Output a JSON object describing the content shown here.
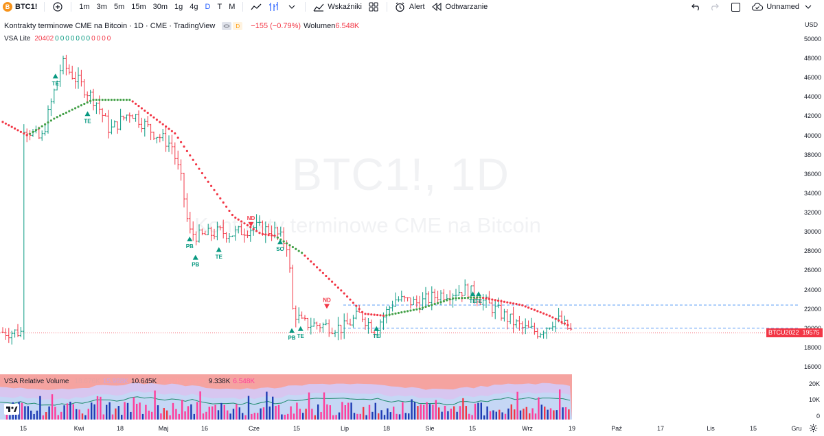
{
  "toolbar": {
    "symbol": "BTC1!",
    "symbol_logo": "B",
    "timeframes": [
      "1m",
      "3m",
      "5m",
      "15m",
      "30m",
      "1g",
      "4g",
      "D",
      "T",
      "M"
    ],
    "active_timeframe": "D",
    "indicators_label": "Wskaźniki",
    "alert_label": "Alert",
    "replay_label": "Odtwarzanie",
    "layout_label": "Unnamed"
  },
  "legend": {
    "title": "Kontrakty terminowe CME na Bitcoin · 1D · CME · TradingView",
    "badge_d": "D",
    "change": "−155 (−0.79%)",
    "volume_label": "Wolumen",
    "volume_value": "6.548K"
  },
  "vsa_legend": {
    "name": "VSA Lite",
    "values": [
      "20402",
      "0",
      "0",
      "0",
      "0",
      "0",
      "0",
      "0",
      "0",
      "0",
      "0",
      "0"
    ]
  },
  "watermark": {
    "line1": "BTC1!, 1D",
    "line2": "Kontrakty terminowe CME na Bitcoin"
  },
  "price_axis": {
    "currency": "USD",
    "labels": [
      "50000",
      "48000",
      "46000",
      "44000",
      "42000",
      "40000",
      "38000",
      "36000",
      "34000",
      "32000",
      "30000",
      "28000",
      "26000",
      "24000",
      "22000",
      "20000",
      "18000",
      "16000"
    ],
    "last_price": "19575",
    "contract_tag": "BTCU2022"
  },
  "volume_pane": {
    "name": "VSA Relative Volume",
    "values": [
      "18.676K",
      "15.968K",
      "10.645K",
      "7.937K",
      "2.615K",
      "9.338K",
      "6.548K"
    ],
    "value_colors": [
      "#e8a3a3",
      "#c7a6e6",
      "#131722",
      "#ff9f9f",
      "#ff9f9f",
      "#131722",
      "#ff3d9a"
    ],
    "axis_labels": [
      "20K",
      "10K",
      "0"
    ]
  },
  "time_axis": {
    "labels": [
      "15",
      "Kwi",
      "18",
      "Maj",
      "16",
      "Cze",
      "15",
      "Lip",
      "18",
      "Sie",
      "15",
      "Wrz",
      "19",
      "Paź",
      "17",
      "Lis",
      "15",
      "Gru"
    ]
  },
  "chart_data": {
    "type": "candlestick",
    "title": "",
    "ylim": [
      16000,
      50000
    ],
    "signals": [
      {
        "label": "TE",
        "dir": "up",
        "date": "2022-03-26",
        "price": 46200
      },
      {
        "label": "TE",
        "dir": "up",
        "date": "2022-04-06",
        "price": 42300
      },
      {
        "label": "PB",
        "dir": "up",
        "date": "2022-05-11",
        "price": 29300
      },
      {
        "label": "PB",
        "dir": "up",
        "date": "2022-05-13",
        "price": 27400
      },
      {
        "label": "TE",
        "dir": "up",
        "date": "2022-05-21",
        "price": 28200
      },
      {
        "label": "ND",
        "dir": "down",
        "date": "2022-06-01",
        "price": 30800
      },
      {
        "label": "SO",
        "dir": "up",
        "date": "2022-06-11",
        "price": 29000
      },
      {
        "label": "PB",
        "dir": "up",
        "date": "2022-06-15",
        "price": 19800
      },
      {
        "label": "TE",
        "dir": "up",
        "date": "2022-06-18",
        "price": 20000
      },
      {
        "label": "ND",
        "dir": "down",
        "date": "2022-06-27",
        "price": 22300
      },
      {
        "label": "TE",
        "dir": "up",
        "date": "2022-07-14",
        "price": 20000
      },
      {
        "label": "TE",
        "dir": "up",
        "date": "2022-08-16",
        "price": 23600
      },
      {
        "label": "TE",
        "dir": "up",
        "date": "2022-08-18",
        "price": 23600
      }
    ],
    "horizontal_lines": [
      22400,
      20000
    ],
    "last_price": 19575
  }
}
